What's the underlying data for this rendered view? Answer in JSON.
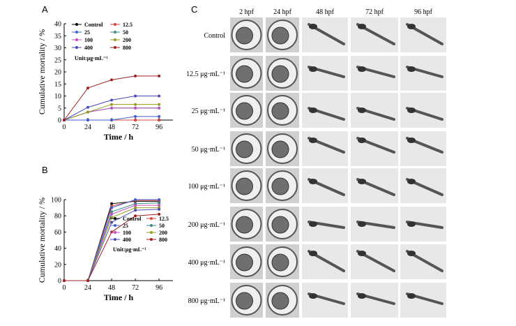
{
  "panels": {
    "a": "A",
    "b": "B",
    "c": "C"
  },
  "chart_data": [
    {
      "type": "line",
      "panel": "A",
      "xlabel": "Time / h",
      "ylabel": "Cumulative mortality / %",
      "x": [
        0,
        24,
        48,
        72,
        96
      ],
      "xlim": [
        0,
        110
      ],
      "ylim": [
        0,
        40
      ],
      "yticks": [
        0,
        5,
        10,
        15,
        20,
        25,
        30,
        35,
        40
      ],
      "unit_note": "Unit:μg·mL⁻¹",
      "series": [
        {
          "name": "Control",
          "color": "#000000",
          "values": [
            0,
            0,
            0,
            0,
            0
          ]
        },
        {
          "name": "12.5",
          "color": "#d9453a",
          "values": [
            0,
            0,
            0,
            0,
            0
          ]
        },
        {
          "name": "25",
          "color": "#3f5fd0",
          "values": [
            0,
            0,
            0,
            1.5,
            1.5
          ]
        },
        {
          "name": "50",
          "color": "#3a8a8a",
          "values": [
            0,
            3.3,
            5,
            5,
            5
          ]
        },
        {
          "name": "100",
          "color": "#c04fc0",
          "values": [
            0,
            3.3,
            5,
            5,
            5
          ]
        },
        {
          "name": "200",
          "color": "#9a9a20",
          "values": [
            0,
            3.3,
            6.5,
            6.5,
            6.5
          ]
        },
        {
          "name": "400",
          "color": "#4a4ab8",
          "values": [
            0,
            5.3,
            8.3,
            10,
            10
          ]
        },
        {
          "name": "800",
          "color": "#a02020",
          "values": [
            0,
            13.3,
            16.7,
            18.3,
            18.3
          ]
        }
      ]
    },
    {
      "type": "line",
      "panel": "B",
      "xlabel": "Time / h",
      "ylabel": "Cumulative mortality / %",
      "x": [
        0,
        24,
        48,
        72,
        96
      ],
      "xlim": [
        0,
        110
      ],
      "ylim": [
        0,
        100
      ],
      "yticks": [
        0,
        20,
        40,
        60,
        80,
        100
      ],
      "unit_note": "Unit:μg·mL⁻¹",
      "series": [
        {
          "name": "Control",
          "color": "#000000",
          "values": [
            0,
            0,
            95,
            98,
            98
          ]
        },
        {
          "name": "12.5",
          "color": "#d9453a",
          "values": [
            0,
            0,
            92,
            99,
            99
          ]
        },
        {
          "name": "25",
          "color": "#3f5fd0",
          "values": [
            0,
            0,
            90,
            100,
            100
          ]
        },
        {
          "name": "50",
          "color": "#3a8a8a",
          "values": [
            0,
            0,
            85,
            95,
            96
          ]
        },
        {
          "name": "100",
          "color": "#c04fc0",
          "values": [
            0,
            0,
            82,
            93,
            93
          ]
        },
        {
          "name": "200",
          "color": "#9a9a20",
          "values": [
            0,
            0,
            78,
            90,
            90
          ]
        },
        {
          "name": "400",
          "color": "#4a4ab8",
          "values": [
            0,
            0,
            72,
            87,
            88
          ]
        },
        {
          "name": "800",
          "color": "#a02020",
          "values": [
            0,
            0,
            60,
            80,
            82
          ]
        }
      ]
    }
  ],
  "image_grid": {
    "columns": [
      "2 hpf",
      "24 hpf",
      "48 hpf",
      "72 hpf",
      "96 hpf"
    ],
    "rows": [
      "Control",
      "12.5 μg·mL⁻¹",
      "25 μg·mL⁻¹",
      "50 μg·mL⁻¹",
      "100 μg·mL⁻¹",
      "200 μg·mL⁻¹",
      "400 μg·mL⁻¹",
      "800 μg·mL⁻¹"
    ]
  }
}
